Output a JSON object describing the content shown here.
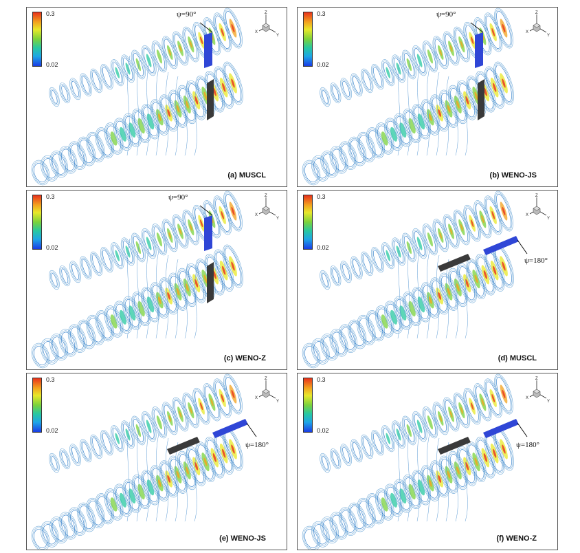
{
  "colorbar": {
    "max": "0.3",
    "min": "0.02"
  },
  "axes_labels": {
    "z": "Z",
    "x": "X",
    "y": "Y"
  },
  "panels": [
    {
      "caption": "(a) MUSCL",
      "angle": "ψ=90°",
      "plate_color": "#2f46d6",
      "orientation": "vertical"
    },
    {
      "caption": "(b) WENO-JS",
      "angle": "ψ=90°",
      "plate_color": "#2f46d6",
      "orientation": "vertical"
    },
    {
      "caption": "(c) WENO-Z",
      "angle": "ψ=90°",
      "plate_color": "#2f46d6",
      "orientation": "vertical"
    },
    {
      "caption": "(d) MUSCL",
      "angle": "ψ=180°",
      "plate_color": "#2f46d6",
      "orientation": "horizontal"
    },
    {
      "caption": "(e) WENO-JS",
      "angle": "ψ=180°",
      "plate_color": "#2f46d6",
      "orientation": "horizontal"
    },
    {
      "caption": "(f) WENO-Z",
      "angle": "ψ=180°",
      "plate_color": "#2f46d6",
      "orientation": "horizontal"
    }
  ]
}
